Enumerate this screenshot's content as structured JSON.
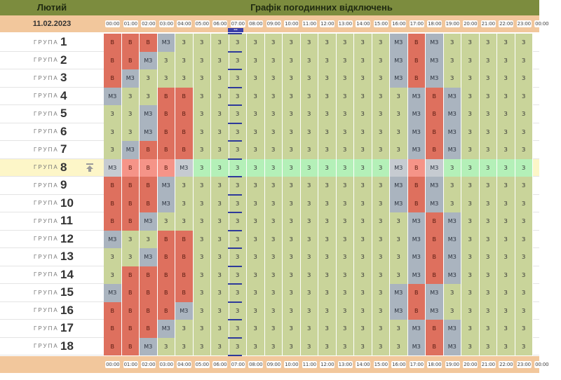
{
  "header": {
    "month": "Лютий",
    "title": "Графік погодинних відключень"
  },
  "date": "11.02.2023",
  "group_label": "ГРУПА",
  "time_labels": [
    "00:00",
    "01:00",
    "02:00",
    "03:00",
    "04:00",
    "05:00",
    "06:00",
    "07:00",
    "08:00",
    "09:00",
    "10:00",
    "11:00",
    "12:00",
    "13:00",
    "14:00",
    "15:00",
    "16:00",
    "17:00",
    "18:00",
    "19:00",
    "20:00",
    "21:00",
    "22:00",
    "23:00",
    "00:00"
  ],
  "current_marker": "•••",
  "highlighted_group": 8,
  "legend_codes": {
    "z": "З",
    "v": "В",
    "m": "МЗ"
  },
  "groups": [
    {
      "number": "1",
      "cells": [
        "v",
        "v",
        "v",
        "m",
        "z",
        "z",
        "z",
        "z",
        "z",
        "z",
        "z",
        "z",
        "z",
        "z",
        "z",
        "z",
        "m",
        "v",
        "m",
        "z",
        "z",
        "z",
        "z",
        "z"
      ]
    },
    {
      "number": "2",
      "cells": [
        "v",
        "v",
        "m",
        "z",
        "z",
        "z",
        "z",
        "z",
        "z",
        "z",
        "z",
        "z",
        "z",
        "z",
        "z",
        "z",
        "m",
        "v",
        "m",
        "z",
        "z",
        "z",
        "z",
        "z"
      ]
    },
    {
      "number": "3",
      "cells": [
        "v",
        "m",
        "z",
        "z",
        "z",
        "z",
        "z",
        "z",
        "z",
        "z",
        "z",
        "z",
        "z",
        "z",
        "z",
        "z",
        "m",
        "v",
        "m",
        "z",
        "z",
        "z",
        "z",
        "z"
      ]
    },
    {
      "number": "4",
      "cells": [
        "m",
        "z",
        "z",
        "v",
        "v",
        "z",
        "z",
        "z",
        "z",
        "z",
        "z",
        "z",
        "z",
        "z",
        "z",
        "z",
        "z",
        "m",
        "v",
        "m",
        "z",
        "z",
        "z",
        "z"
      ]
    },
    {
      "number": "5",
      "cells": [
        "z",
        "z",
        "m",
        "v",
        "v",
        "z",
        "z",
        "z",
        "z",
        "z",
        "z",
        "z",
        "z",
        "z",
        "z",
        "z",
        "z",
        "m",
        "v",
        "m",
        "z",
        "z",
        "z",
        "z"
      ]
    },
    {
      "number": "6",
      "cells": [
        "z",
        "z",
        "m",
        "v",
        "v",
        "z",
        "z",
        "z",
        "z",
        "z",
        "z",
        "z",
        "z",
        "z",
        "z",
        "z",
        "z",
        "m",
        "v",
        "m",
        "z",
        "z",
        "z",
        "z"
      ]
    },
    {
      "number": "7",
      "cells": [
        "z",
        "m",
        "v",
        "v",
        "v",
        "z",
        "z",
        "z",
        "z",
        "z",
        "z",
        "z",
        "z",
        "z",
        "z",
        "z",
        "z",
        "m",
        "v",
        "m",
        "z",
        "z",
        "z",
        "z"
      ]
    },
    {
      "number": "8",
      "cells": [
        "m",
        "v",
        "v",
        "v",
        "m",
        "z",
        "z",
        "z",
        "z",
        "z",
        "z",
        "z",
        "z",
        "z",
        "z",
        "z",
        "m",
        "v",
        "m",
        "z",
        "z",
        "z",
        "z",
        "z"
      ]
    },
    {
      "number": "9",
      "cells": [
        "v",
        "v",
        "v",
        "m",
        "z",
        "z",
        "z",
        "z",
        "z",
        "z",
        "z",
        "z",
        "z",
        "z",
        "z",
        "z",
        "m",
        "v",
        "m",
        "z",
        "z",
        "z",
        "z",
        "z"
      ]
    },
    {
      "number": "10",
      "cells": [
        "v",
        "v",
        "v",
        "m",
        "z",
        "z",
        "z",
        "z",
        "z",
        "z",
        "z",
        "z",
        "z",
        "z",
        "z",
        "z",
        "m",
        "v",
        "m",
        "z",
        "z",
        "z",
        "z",
        "z"
      ]
    },
    {
      "number": "11",
      "cells": [
        "v",
        "v",
        "m",
        "z",
        "z",
        "z",
        "z",
        "z",
        "z",
        "z",
        "z",
        "z",
        "z",
        "z",
        "z",
        "z",
        "z",
        "m",
        "v",
        "m",
        "z",
        "z",
        "z",
        "z"
      ]
    },
    {
      "number": "12",
      "cells": [
        "m",
        "z",
        "z",
        "v",
        "v",
        "z",
        "z",
        "z",
        "z",
        "z",
        "z",
        "z",
        "z",
        "z",
        "z",
        "z",
        "z",
        "m",
        "v",
        "m",
        "z",
        "z",
        "z",
        "z"
      ]
    },
    {
      "number": "13",
      "cells": [
        "z",
        "z",
        "m",
        "v",
        "v",
        "z",
        "z",
        "z",
        "z",
        "z",
        "z",
        "z",
        "z",
        "z",
        "z",
        "z",
        "z",
        "m",
        "v",
        "m",
        "z",
        "z",
        "z",
        "z"
      ]
    },
    {
      "number": "14",
      "cells": [
        "z",
        "v",
        "v",
        "v",
        "v",
        "z",
        "z",
        "z",
        "z",
        "z",
        "z",
        "z",
        "z",
        "z",
        "z",
        "z",
        "z",
        "m",
        "v",
        "m",
        "z",
        "z",
        "z",
        "z"
      ]
    },
    {
      "number": "15",
      "cells": [
        "m",
        "v",
        "v",
        "v",
        "v",
        "z",
        "z",
        "z",
        "z",
        "z",
        "z",
        "z",
        "z",
        "z",
        "z",
        "z",
        "m",
        "v",
        "m",
        "z",
        "z",
        "z",
        "z",
        "z"
      ]
    },
    {
      "number": "16",
      "cells": [
        "v",
        "v",
        "v",
        "v",
        "m",
        "z",
        "z",
        "z",
        "z",
        "z",
        "z",
        "z",
        "z",
        "z",
        "z",
        "z",
        "m",
        "v",
        "m",
        "z",
        "z",
        "z",
        "z",
        "z"
      ]
    },
    {
      "number": "17",
      "cells": [
        "v",
        "v",
        "v",
        "m",
        "z",
        "z",
        "z",
        "z",
        "z",
        "z",
        "z",
        "z",
        "z",
        "z",
        "z",
        "z",
        "z",
        "m",
        "v",
        "m",
        "z",
        "z",
        "z",
        "z"
      ]
    },
    {
      "number": "18",
      "cells": [
        "v",
        "v",
        "m",
        "z",
        "z",
        "z",
        "z",
        "z",
        "z",
        "z",
        "z",
        "z",
        "z",
        "z",
        "z",
        "z",
        "z",
        "m",
        "v",
        "m",
        "z",
        "z",
        "z",
        "z"
      ]
    }
  ]
}
